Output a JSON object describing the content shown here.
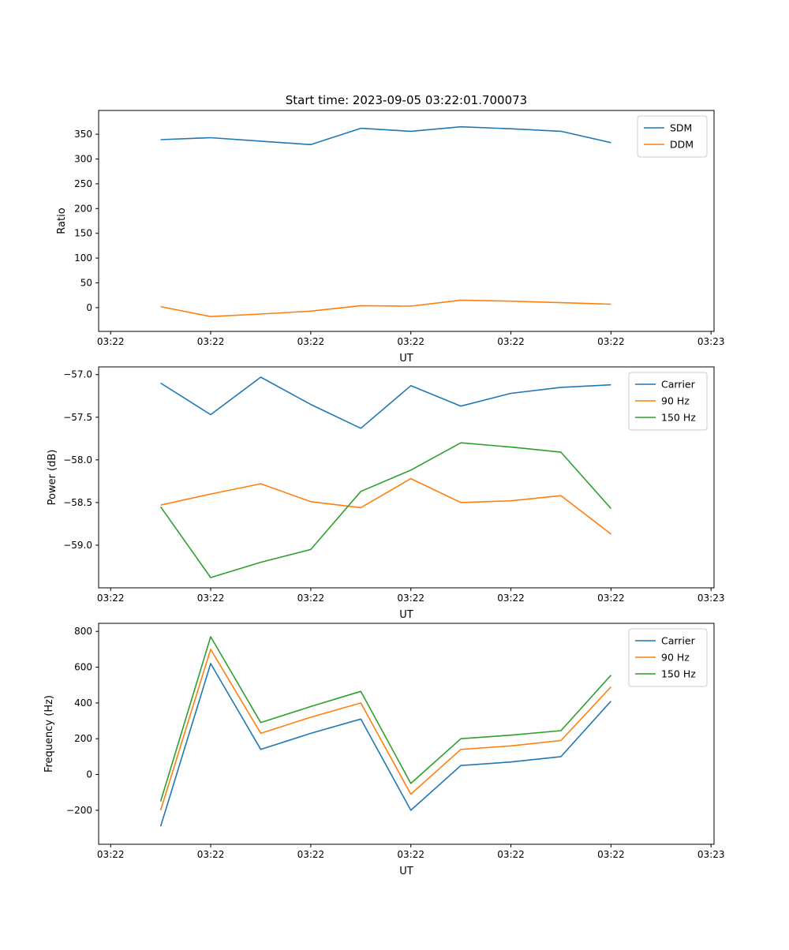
{
  "figure": {
    "title": "Start time: 2023-09-05 03:22:01.700073",
    "background": "#ffffff",
    "palette": {
      "blue": "#1f77b4",
      "orange": "#ff7f0e",
      "green": "#2ca02c"
    }
  },
  "chart_data": [
    {
      "type": "line",
      "title": "Start time: 2023-09-05 03:22:01.700073",
      "xlabel": "UT",
      "ylabel": "Ratio",
      "grid": false,
      "legend_position": "upper right",
      "x": [
        5,
        10,
        15,
        20,
        25,
        30,
        35,
        40,
        45,
        50
      ],
      "xlim": [
        -1.2,
        60.3
      ],
      "ylim": [
        -48,
        398
      ],
      "x_ticks": {
        "positions": [
          0,
          10,
          20,
          30,
          40,
          50,
          60
        ],
        "labels": [
          "03:22",
          "03:22",
          "03:22",
          "03:22",
          "03:22",
          "03:22",
          "03:23"
        ]
      },
      "y_ticks": {
        "positions": [
          0,
          50,
          100,
          150,
          200,
          250,
          300,
          350
        ],
        "labels": [
          "0",
          "50",
          "100",
          "150",
          "200",
          "250",
          "300",
          "350"
        ]
      },
      "series": [
        {
          "name": "SDM",
          "color": "#1f77b4",
          "values": [
            339,
            343,
            336,
            329,
            362,
            356,
            365,
            361,
            356,
            333
          ]
        },
        {
          "name": "DDM",
          "color": "#ff7f0e",
          "values": [
            2,
            -18,
            -13,
            -7,
            4,
            3,
            15,
            13,
            10,
            7
          ]
        }
      ]
    },
    {
      "type": "line",
      "title": "",
      "xlabel": "UT",
      "ylabel": "Power (dB)",
      "grid": false,
      "legend_position": "upper right",
      "x": [
        5,
        10,
        15,
        20,
        25,
        30,
        35,
        40,
        45,
        50
      ],
      "xlim": [
        -1.2,
        60.3
      ],
      "ylim": [
        -59.5,
        -56.91
      ],
      "x_ticks": {
        "positions": [
          0,
          10,
          20,
          30,
          40,
          50,
          60
        ],
        "labels": [
          "03:22",
          "03:22",
          "03:22",
          "03:22",
          "03:22",
          "03:22",
          "03:23"
        ]
      },
      "y_ticks": {
        "positions": [
          -57.0,
          -57.5,
          -58.0,
          -58.5,
          -59.0
        ],
        "labels": [
          "−57.0",
          "−57.5",
          "−58.0",
          "−58.5",
          "−59.0"
        ]
      },
      "series": [
        {
          "name": "Carrier",
          "color": "#1f77b4",
          "values": [
            -57.1,
            -57.47,
            -57.03,
            -57.35,
            -57.63,
            -57.13,
            -57.37,
            -57.22,
            -57.15,
            -57.12
          ]
        },
        {
          "name": "90 Hz",
          "color": "#ff7f0e",
          "values": [
            -58.53,
            -58.4,
            -58.28,
            -58.49,
            -58.56,
            -58.22,
            -58.5,
            -58.48,
            -58.42,
            -58.87
          ]
        },
        {
          "name": "150 Hz",
          "color": "#2ca02c",
          "values": [
            -58.55,
            -59.38,
            -59.2,
            -59.05,
            -58.37,
            -58.12,
            -57.8,
            -57.85,
            -57.91,
            -58.57
          ]
        }
      ]
    },
    {
      "type": "line",
      "title": "",
      "xlabel": "UT",
      "ylabel": "Frequency (Hz)",
      "grid": false,
      "legend_position": "upper right",
      "x": [
        5,
        10,
        15,
        20,
        25,
        30,
        35,
        40,
        45,
        50
      ],
      "xlim": [
        -1.2,
        60.3
      ],
      "ylim": [
        -390,
        845
      ],
      "x_ticks": {
        "positions": [
          0,
          10,
          20,
          30,
          40,
          50,
          60
        ],
        "labels": [
          "03:22",
          "03:22",
          "03:22",
          "03:22",
          "03:22",
          "03:22",
          "03:23"
        ]
      },
      "y_ticks": {
        "positions": [
          -200,
          0,
          200,
          400,
          600,
          800
        ],
        "labels": [
          "−200",
          "0",
          "200",
          "400",
          "600",
          "800"
        ]
      },
      "series": [
        {
          "name": "Carrier",
          "color": "#1f77b4",
          "values": [
            -290,
            620,
            140,
            230,
            310,
            -200,
            50,
            70,
            100,
            410
          ]
        },
        {
          "name": "90 Hz",
          "color": "#ff7f0e",
          "values": [
            -200,
            700,
            230,
            320,
            400,
            -110,
            140,
            160,
            190,
            490
          ]
        },
        {
          "name": "150 Hz",
          "color": "#2ca02c",
          "values": [
            -150,
            770,
            290,
            380,
            465,
            -50,
            200,
            220,
            245,
            555
          ]
        }
      ]
    }
  ]
}
